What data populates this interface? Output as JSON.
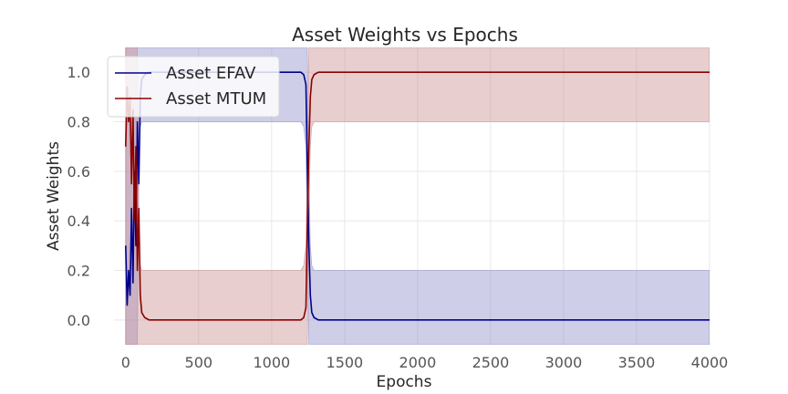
{
  "chart_data": {
    "type": "line",
    "title": "Asset Weights vs Epochs",
    "xlabel": "Epochs",
    "ylabel": "Asset Weights",
    "xlim": [
      -80,
      4000
    ],
    "ylim": [
      -0.1,
      1.1
    ],
    "xticks": [
      "0",
      "500",
      "1000",
      "1500",
      "2000",
      "2500",
      "3000",
      "3500",
      "4000"
    ],
    "xtick_values": [
      0,
      500,
      1000,
      1500,
      2000,
      2500,
      3000,
      3500,
      4000
    ],
    "yticks": [
      "0.0",
      "0.2",
      "0.4",
      "0.6",
      "0.8",
      "1.0"
    ],
    "ytick_values": [
      0.0,
      0.2,
      0.4,
      0.6,
      0.8,
      1.0
    ],
    "grid": true,
    "legend_position": "top-left",
    "series": [
      {
        "name": "Asset EFAV",
        "color": "#00008b",
        "band_color": "#8b8bc8",
        "x": [
          0,
          10,
          20,
          30,
          40,
          50,
          60,
          70,
          80,
          90,
          100,
          110,
          130,
          160,
          200,
          300,
          500,
          700,
          900,
          1100,
          1200,
          1220,
          1235,
          1245,
          1255,
          1265,
          1275,
          1290,
          1320,
          1400,
          1600,
          2000,
          2500,
          3000,
          3500,
          4000
        ],
        "y": [
          0.3,
          0.06,
          0.2,
          0.1,
          0.45,
          0.15,
          0.6,
          0.3,
          0.8,
          0.55,
          0.9,
          0.97,
          0.99,
          1.0,
          1.0,
          1.0,
          1.0,
          1.0,
          1.0,
          1.0,
          1.0,
          0.99,
          0.95,
          0.6,
          0.3,
          0.1,
          0.03,
          0.01,
          0.0,
          0.0,
          0.0,
          0.0,
          0.0,
          0.0,
          0.0,
          0.0
        ],
        "lower": [
          -0.1,
          -0.1,
          -0.1,
          -0.1,
          -0.1,
          -0.1,
          -0.1,
          -0.1,
          -0.1,
          0.6,
          0.78,
          0.8,
          0.8,
          0.8,
          0.8,
          0.8,
          0.8,
          0.8,
          0.8,
          0.8,
          0.8,
          0.78,
          0.7,
          0.3,
          -0.1,
          -0.1,
          -0.1,
          -0.1,
          -0.1,
          -0.1,
          -0.1,
          -0.1,
          -0.1,
          -0.1,
          -0.1,
          -0.1
        ],
        "upper": [
          1.1,
          1.1,
          1.1,
          1.1,
          1.1,
          1.1,
          1.1,
          1.1,
          1.1,
          1.1,
          1.1,
          1.1,
          1.1,
          1.1,
          1.1,
          1.1,
          1.1,
          1.1,
          1.1,
          1.1,
          1.1,
          1.1,
          1.1,
          1.1,
          0.6,
          0.3,
          0.22,
          0.2,
          0.2,
          0.2,
          0.2,
          0.2,
          0.2,
          0.2,
          0.2,
          0.2
        ]
      },
      {
        "name": "Asset MTUM",
        "color": "#8b0000",
        "band_color": "#c88b8b",
        "x": [
          0,
          10,
          20,
          30,
          40,
          50,
          60,
          70,
          80,
          90,
          100,
          110,
          130,
          160,
          200,
          300,
          500,
          700,
          900,
          1100,
          1200,
          1220,
          1235,
          1245,
          1255,
          1265,
          1275,
          1290,
          1320,
          1400,
          1600,
          2000,
          2500,
          3000,
          3500,
          4000
        ],
        "y": [
          0.7,
          0.94,
          0.8,
          0.9,
          0.55,
          0.85,
          0.4,
          0.7,
          0.2,
          0.45,
          0.1,
          0.03,
          0.01,
          0.0,
          0.0,
          0.0,
          0.0,
          0.0,
          0.0,
          0.0,
          0.0,
          0.01,
          0.05,
          0.4,
          0.7,
          0.9,
          0.97,
          0.99,
          1.0,
          1.0,
          1.0,
          1.0,
          1.0,
          1.0,
          1.0,
          1.0
        ],
        "lower": [
          -0.1,
          -0.1,
          -0.1,
          -0.1,
          -0.1,
          -0.1,
          -0.1,
          -0.1,
          -0.1,
          -0.1,
          -0.1,
          -0.1,
          -0.1,
          -0.1,
          -0.1,
          -0.1,
          -0.1,
          -0.1,
          -0.1,
          -0.1,
          -0.1,
          -0.1,
          -0.1,
          -0.1,
          0.4,
          0.7,
          0.78,
          0.8,
          0.8,
          0.8,
          0.8,
          0.8,
          0.8,
          0.8,
          0.8,
          0.8
        ],
        "upper": [
          1.1,
          1.1,
          1.1,
          1.1,
          1.1,
          1.1,
          1.1,
          1.1,
          1.1,
          0.4,
          0.22,
          0.2,
          0.2,
          0.2,
          0.2,
          0.2,
          0.2,
          0.2,
          0.2,
          0.2,
          0.2,
          0.22,
          0.3,
          0.7,
          1.1,
          1.1,
          1.1,
          1.1,
          1.1,
          1.1,
          1.1,
          1.1,
          1.1,
          1.1,
          1.1,
          1.1
        ]
      }
    ]
  }
}
